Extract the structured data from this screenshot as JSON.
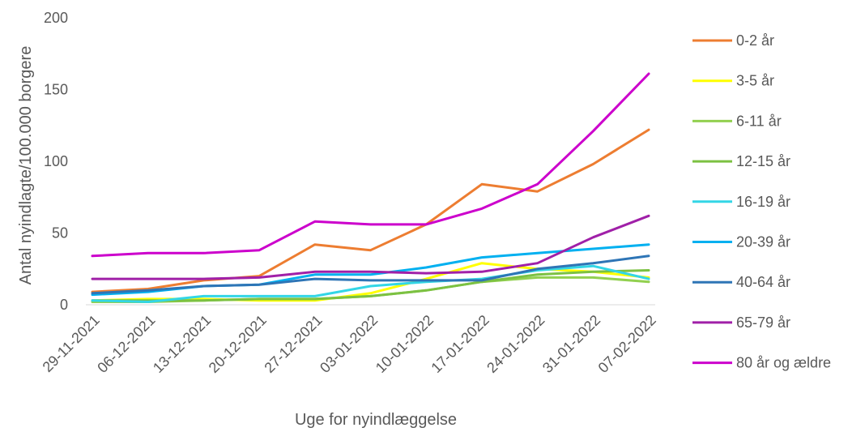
{
  "chart_data": {
    "type": "line",
    "title": "",
    "xlabel": "Uge for nyindlæggelse",
    "ylabel": "Antal nyindlagte/100.000  borgere",
    "ylim": [
      0,
      200
    ],
    "yticks": [
      0,
      50,
      100,
      150,
      200
    ],
    "grid": false,
    "legend_position": "right",
    "categories": [
      "29-11-2021",
      "06-12-2021",
      "13-12-2021",
      "20-12-2021",
      "27-12-2021",
      "03-01-2022",
      "10-01-2022",
      "17-01-2022",
      "24-01-2022",
      "31-01-2022",
      "07-02-2022"
    ],
    "series": [
      {
        "name": "0-2 år",
        "color": "#ED7D31",
        "values": [
          9,
          11,
          17,
          20,
          42,
          38,
          56,
          84,
          79,
          98,
          122
        ]
      },
      {
        "name": "3-5 år",
        "color": "#FFFF00",
        "values": [
          3,
          4,
          4,
          3,
          3,
          8,
          18,
          29,
          25,
          23,
          19
        ]
      },
      {
        "name": "6-11 år",
        "color": "#92D050",
        "values": [
          2,
          2,
          3,
          4,
          4,
          6,
          10,
          16,
          19,
          19,
          16
        ]
      },
      {
        "name": "12-15 år",
        "color": "#7CC142",
        "values": [
          3,
          3,
          3,
          4,
          4,
          6,
          10,
          16,
          21,
          23,
          24
        ]
      },
      {
        "name": "16-19 år",
        "color": "#33D6E6",
        "values": [
          3,
          2,
          6,
          6,
          6,
          13,
          16,
          18,
          24,
          27,
          18
        ]
      },
      {
        "name": "20-39 år",
        "color": "#00B0F0",
        "values": [
          7,
          9,
          13,
          14,
          21,
          21,
          26,
          33,
          36,
          39,
          42
        ]
      },
      {
        "name": "40-64 år",
        "color": "#2E75B6",
        "values": [
          8,
          10,
          13,
          14,
          18,
          17,
          17,
          17,
          25,
          29,
          34
        ]
      },
      {
        "name": "65-79 år",
        "color": "#A020A8",
        "values": [
          18,
          18,
          18,
          19,
          23,
          23,
          22,
          23,
          29,
          47,
          62
        ]
      },
      {
        "name": "80 år og ældre",
        "color": "#CC00CC",
        "values": [
          34,
          36,
          36,
          38,
          58,
          56,
          56,
          67,
          84,
          121,
          161
        ]
      }
    ]
  }
}
